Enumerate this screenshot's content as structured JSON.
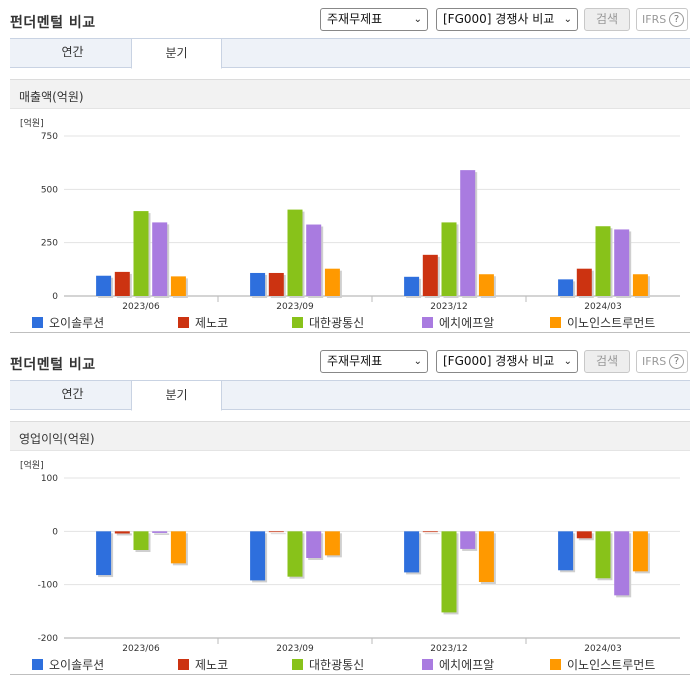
{
  "panels": [
    {
      "header_title": "펀더멘털 비교",
      "select_1": "주재무제표",
      "select_2": "[FG000] 경쟁사 비교",
      "search_label": "검색",
      "ifrs_label": "IFRS",
      "help_glyph": "?",
      "tabs": [
        {
          "label": "연간"
        },
        {
          "label": "분기",
          "active": true
        }
      ],
      "chart_title": "매출액(억원)",
      "chart_data": {
        "type": "bar",
        "title": "매출액(억원)",
        "unit_label": "[억원]",
        "categories": [
          "2023/06",
          "2023/09",
          "2023/12",
          "2024/03"
        ],
        "ylim": [
          0,
          750
        ],
        "yticks": [
          0,
          250,
          500,
          750
        ],
        "grid": true,
        "legend_position": "bottom",
        "series": [
          {
            "name": "오이솔루션",
            "color": "#2e6fdd",
            "values": [
              95,
              108,
              90,
              78
            ]
          },
          {
            "name": "제노코",
            "color": "#cc3311",
            "values": [
              113,
              108,
              193,
              128
            ]
          },
          {
            "name": "대한광통신",
            "color": "#88c21a",
            "values": [
              398,
              405,
              345,
              327
            ]
          },
          {
            "name": "에치에프알",
            "color": "#a97be0",
            "values": [
              345,
              335,
              590,
              312
            ]
          },
          {
            "name": "이노인스트루먼트",
            "color": "#ff9900",
            "values": [
              92,
              128,
              102,
              102
            ]
          }
        ]
      }
    },
    {
      "header_title": "펀더멘털 비교",
      "select_1": "주재무제표",
      "select_2": "[FG000] 경쟁사 비교",
      "search_label": "검색",
      "ifrs_label": "IFRS",
      "help_glyph": "?",
      "tabs": [
        {
          "label": "연간"
        },
        {
          "label": "분기",
          "active": true
        }
      ],
      "chart_title": "영업이익(억원)",
      "chart_data": {
        "type": "bar",
        "title": "영업이익(억원)",
        "unit_label": "[억원]",
        "categories": [
          "2023/06",
          "2023/09",
          "2023/12",
          "2024/03"
        ],
        "ylim": [
          -200,
          100
        ],
        "yticks": [
          -200,
          -100,
          0,
          100
        ],
        "grid": true,
        "legend_position": "bottom",
        "series": [
          {
            "name": "오이솔루션",
            "color": "#2e6fdd",
            "values": [
              -82,
              -92,
              -77,
              -73
            ]
          },
          {
            "name": "제노코",
            "color": "#cc3311",
            "values": [
              -4,
              0,
              0,
              -13
            ]
          },
          {
            "name": "대한광통신",
            "color": "#88c21a",
            "values": [
              -35,
              -85,
              -152,
              -88
            ]
          },
          {
            "name": "에치에프알",
            "color": "#a97be0",
            "values": [
              -3,
              -50,
              -33,
              -120
            ]
          },
          {
            "name": "이노인스트루먼트",
            "color": "#ff9900",
            "values": [
              -60,
              -45,
              -95,
              -75
            ]
          }
        ]
      }
    }
  ]
}
